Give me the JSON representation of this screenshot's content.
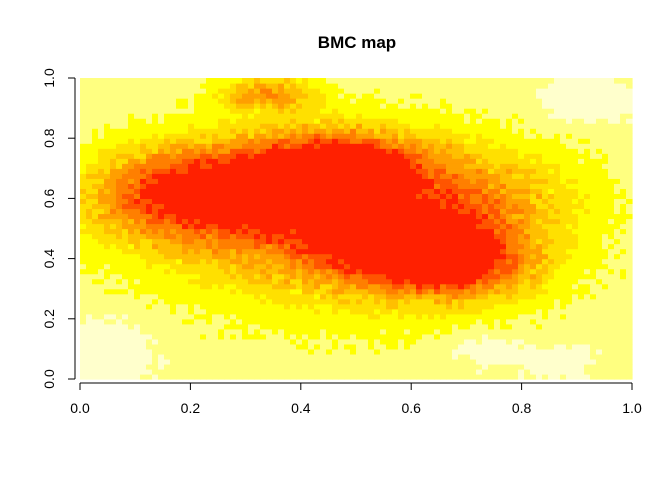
{
  "chart_data": {
    "type": "heatmap",
    "title": "BMC map",
    "xlabel": "",
    "ylabel": "",
    "xlim": [
      0.0,
      1.0
    ],
    "ylim": [
      0.0,
      1.0
    ],
    "x_ticks": [
      "0.0",
      "0.2",
      "0.4",
      "0.6",
      "0.8",
      "1.0"
    ],
    "y_ticks": [
      "0.0",
      "0.2",
      "0.4",
      "0.6",
      "0.8",
      "1.0"
    ],
    "color_scale": [
      "#ffffcc",
      "#ffff80",
      "#ffff00",
      "#ffe000",
      "#ffbf00",
      "#ff9f00",
      "#ff7f00",
      "#ff5500",
      "#ff2000"
    ],
    "grid": false,
    "legend": "none"
  }
}
